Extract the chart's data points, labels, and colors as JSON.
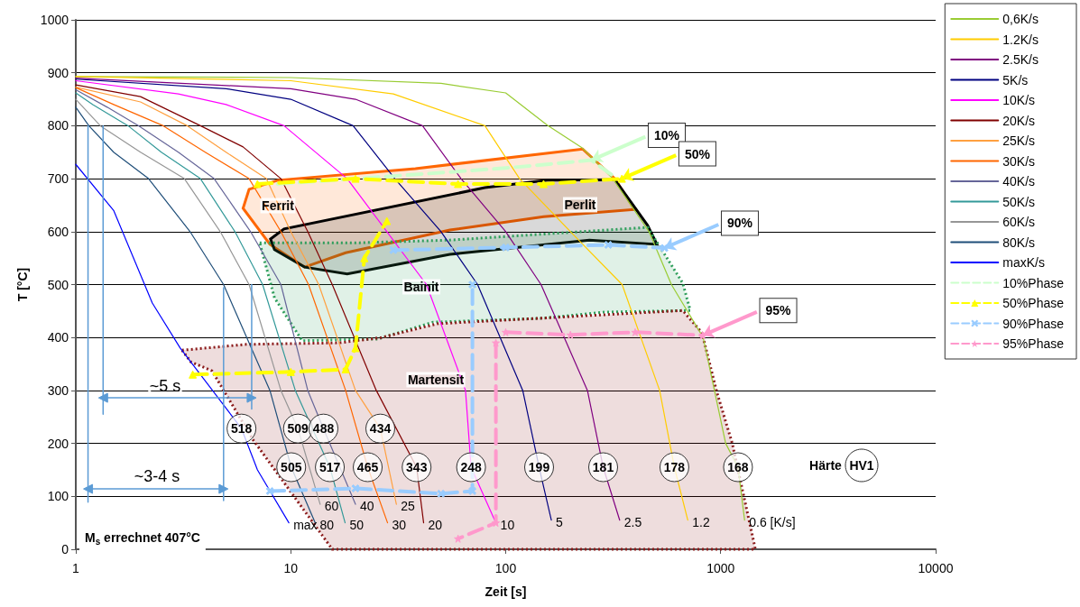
{
  "chart_data": {
    "type": "line",
    "xlabel": "Zeit [s]",
    "ylabel": "T [°C]",
    "log": "x",
    "xlim": [
      1,
      10000
    ],
    "xticks": [
      1,
      10,
      100,
      1000,
      10000
    ],
    "ylim": [
      0,
      1000
    ],
    "yticks": [
      0,
      100,
      200,
      300,
      400,
      500,
      600,
      700,
      800,
      900,
      1000
    ],
    "grid": "y",
    "legend": "right",
    "series": [
      {
        "name": "0,6K/s",
        "color": "#99cc33",
        "x": [
          1,
          10,
          50,
          100,
          156,
          227,
          315,
          464,
          590,
          829,
          1055,
          1204,
          1292
        ],
        "values": [
          893,
          891,
          880,
          862,
          801,
          758,
          700,
          600,
          500,
          400,
          200,
          155,
          55
        ]
      },
      {
        "name": "1.2K/s",
        "color": "#ffcc00",
        "x": [
          1,
          10,
          30,
          80,
          116,
          200,
          348,
          520,
          609,
          703
        ],
        "values": [
          893,
          885,
          860,
          800,
          700,
          600,
          500,
          300,
          155,
          55
        ]
      },
      {
        "name": "2.5K/s",
        "color": "#800080",
        "x": [
          1,
          10,
          20,
          41,
          62,
          100,
          146,
          240,
          284,
          339
        ],
        "values": [
          890,
          870,
          850,
          800,
          700,
          600,
          500,
          300,
          155,
          55
        ]
      },
      {
        "name": "5K/s",
        "color": "#000080",
        "x": [
          1,
          5,
          10,
          19.5,
          30.5,
          50,
          74,
          120,
          143,
          163
        ],
        "values": [
          888,
          870,
          850,
          800,
          700,
          600,
          500,
          300,
          155,
          55
        ]
      },
      {
        "name": "10K/s",
        "color": "#ff00ff",
        "x": [
          1,
          3,
          5,
          9.3,
          18.3,
          28,
          42.8,
          65,
          69,
          90
        ],
        "values": [
          885,
          860,
          840,
          800,
          700,
          600,
          500,
          300,
          155,
          50
        ]
      },
      {
        "name": "20K/s",
        "color": "#800000",
        "x": [
          1,
          2,
          3.8,
          6,
          9,
          12,
          15.6,
          25,
          38.5,
          41.5
        ],
        "values": [
          877,
          855,
          800,
          760,
          700,
          600,
          500,
          300,
          155,
          50
        ]
      },
      {
        "name": "25K/s",
        "color": "#ffa040",
        "x": [
          1,
          2,
          3.3,
          5,
          7.7,
          10,
          13.5,
          20,
          26.1,
          31
        ],
        "values": [
          873,
          845,
          800,
          750,
          700,
          600,
          500,
          300,
          228,
          85
        ]
      },
      {
        "name": "30K/s",
        "color": "#ff6600",
        "x": [
          1,
          1.5,
          2.55,
          4,
          6.4,
          9,
          12.1,
          18,
          22.8,
          28.2
        ],
        "values": [
          872,
          840,
          800,
          750,
          700,
          600,
          500,
          300,
          155,
          50
        ]
      },
      {
        "name": "40K/s",
        "color": "#666699",
        "x": [
          1,
          1.4,
          1.96,
          3,
          4.4,
          6.5,
          9,
          12,
          14.2,
          20
        ],
        "values": [
          868,
          835,
          800,
          750,
          700,
          600,
          500,
          300,
          228,
          85
        ]
      },
      {
        "name": "50K/s",
        "color": "#339999",
        "x": [
          1,
          1.2,
          1.75,
          2.5,
          3.8,
          5.5,
          7.4,
          10.5,
          15.2,
          17.9
        ],
        "values": [
          862,
          840,
          800,
          750,
          700,
          600,
          500,
          300,
          155,
          50
        ]
      },
      {
        "name": "60K/s",
        "color": "#969696",
        "x": [
          1,
          1.3,
          2,
          3.2,
          4.7,
          6.4,
          9,
          10.8,
          13.7
        ],
        "values": [
          850,
          800,
          750,
          700,
          600,
          500,
          300,
          228,
          85
        ]
      },
      {
        "name": "80K/s",
        "color": "#1f4e79",
        "x": [
          1,
          1.15,
          1.5,
          2.18,
          3.4,
          4.87,
          8,
          10.05,
          13
        ],
        "values": [
          835,
          800,
          750,
          700,
          600,
          500,
          300,
          155,
          50
        ]
      },
      {
        "name": "maxK/s",
        "color": "#0000ff",
        "x": [
          1,
          1.5,
          2.27,
          3.06,
          5.9,
          7,
          9.8
        ],
        "values": [
          727,
          640,
          465,
          380,
          228,
          150,
          50
        ]
      },
      {
        "name": "10%Phase",
        "color": "#ccffcc",
        "line_style": "dashed",
        "x": [
          8.7,
          30,
          100,
          250,
          330
        ],
        "values": [
          690,
          705,
          720,
          735,
          700
        ]
      },
      {
        "name": "50%Phase",
        "color": "#ffff00",
        "line_style": "dashed",
        "marker": "triangle",
        "x": [
          7,
          20,
          60,
          150,
          347
        ],
        "values": [
          690,
          700,
          690,
          690,
          700
        ]
      },
      {
        "color": "#ffff00",
        "line_style": "dashed",
        "marker": "triangle",
        "x": [
          3.5,
          10,
          18,
          20,
          22,
          28
        ],
        "values": [
          330,
          335,
          340,
          380,
          550,
          620
        ]
      },
      {
        "name": "90%Phase",
        "color": "#99ccff",
        "line_style": "dashed",
        "marker": "cross",
        "x": [
          30,
          100,
          300,
          547
        ],
        "values": [
          565,
          570,
          575,
          569
        ]
      },
      {
        "color": "#99ccff",
        "line_style": "dashed",
        "marker": "cross",
        "x": [
          8,
          20,
          50,
          70,
          70
        ],
        "values": [
          110,
          115,
          105,
          110,
          500
        ]
      },
      {
        "name": "95%Phase",
        "color": "#ff99cc",
        "line_style": "dashed",
        "marker": "star",
        "x": [
          100,
          200,
          400,
          825
        ],
        "values": [
          410,
          405,
          410,
          404
        ]
      },
      {
        "color": "#ff99cc",
        "line_style": "dashed",
        "marker": "star",
        "x": [
          90,
          90,
          60
        ],
        "values": [
          390,
          50,
          20
        ]
      },
      {
        "type": "area",
        "color": "#ff6600",
        "x": [
          8,
          6,
          6.4,
          8.7,
          38,
          228,
          322,
          398,
          150,
          55,
          18,
          11.6,
          8
        ],
        "values": [
          576,
          644,
          680,
          697,
          719,
          756,
          700,
          642,
          628,
          603,
          560,
          533,
          576
        ]
      },
      {
        "type": "area",
        "color": "#000000",
        "x": [
          8.05,
          9.3,
          80,
          156,
          322,
          457,
          505,
          245,
          55,
          18.3,
          11.6,
          8.4,
          8.05
        ],
        "values": [
          586,
          605,
          683,
          697,
          698,
          612,
          576,
          584,
          557,
          520,
          533,
          566,
          586
        ]
      },
      {
        "type": "area",
        "color": "#2e9e5b",
        "line_style": "dotted",
        "x": [
          7.17,
          21,
          55,
          457,
          666,
          722,
          289,
          146,
          46,
          25.4,
          11.3,
          8.4,
          7.17
        ],
        "values": [
          579,
          579,
          584,
          608,
          503,
          451,
          448,
          436,
          429,
          397,
          394,
          475,
          579
        ]
      },
      {
        "type": "area",
        "color": "#8b1a1a",
        "line_style": "dotted",
        "x": [
          3.12,
          6.2,
          16.9,
          26.4,
          48,
          666,
          818,
          958,
          1134,
          1450,
          15.6,
          6.7,
          4.3,
          3.43,
          3.12
        ],
        "values": [
          376,
          387,
          390,
          400,
          426,
          451,
          409,
          298,
          199,
          0,
          0,
          206,
          337,
          354,
          376
        ]
      },
      {
        "color": "#5b9bd5",
        "x": [
          1.14,
          1.14
        ],
        "values": [
          800,
          89
        ]
      },
      {
        "color": "#5b9bd5",
        "x": [
          1.34,
          1.34
        ],
        "values": [
          800,
          255
        ]
      },
      {
        "color": "#5b9bd5",
        "x": [
          4.87,
          4.87
        ],
        "values": [
          494,
          92
        ]
      },
      {
        "color": "#5b9bd5",
        "x": [
          6.58,
          6.58
        ],
        "values": [
          500,
          265
        ]
      },
      {
        "color": "#5b9bd5",
        "marker": "triangle",
        "x": [
          1.34,
          6.58
        ],
        "values": [
          286,
          286
        ]
      },
      {
        "color": "#5b9bd5",
        "marker": "triangle",
        "x": [
          1.14,
          4.87
        ],
        "values": [
          114,
          114
        ]
      }
    ],
    "annotations": [
      "Ferrit",
      "Perlit",
      "Bainit",
      "Martensit",
      {
        "text": "10%",
        "x": 250,
        "y": 735
      },
      {
        "text": "50%",
        "x": 347,
        "y": 700
      },
      {
        "text": "90%",
        "x": 547,
        "y": 569
      },
      {
        "text": "95%",
        "x": 825,
        "y": 404
      },
      "~5 s",
      "~3-4 s",
      "Härte",
      "HV1",
      "M$_{s}$ errechnet 407°C",
      {
        "text": "518",
        "x": 5.9,
        "y": 228
      },
      {
        "text": "509",
        "x": 10.8,
        "y": 228
      },
      {
        "text": "488",
        "x": 14.2,
        "y": 228
      },
      {
        "text": "434",
        "x": 26.1,
        "y": 228
      },
      {
        "text": "505",
        "x": 10.05,
        "y": 155
      },
      {
        "text": "517",
        "x": 15.2,
        "y": 155
      },
      {
        "text": "465",
        "x": 22.8,
        "y": 155
      },
      {
        "text": "343",
        "x": 38.5,
        "y": 155
      },
      {
        "text": "248",
        "x": 69,
        "y": 155
      },
      {
        "text": "199",
        "x": 143,
        "y": 155
      },
      {
        "text": "181",
        "x": 284,
        "y": 155
      },
      {
        "text": "178",
        "x": 609,
        "y": 155
      },
      {
        "text": "168",
        "x": 1204,
        "y": 155
      },
      {
        "text": "max",
        "x": 9.8,
        "y": 50
      },
      {
        "text": "80",
        "x": 13,
        "y": 50
      },
      {
        "text": "60",
        "x": 13.7,
        "y": 85
      },
      {
        "text": "50",
        "x": 17.9,
        "y": 50
      },
      {
        "text": "40",
        "x": 20,
        "y": 85
      },
      {
        "text": "30",
        "x": 28.2,
        "y": 50
      },
      {
        "text": "25",
        "x": 31,
        "y": 85
      },
      {
        "text": "20",
        "x": 41.5,
        "y": 50
      },
      {
        "text": "10",
        "x": 90,
        "y": 50
      },
      {
        "text": "5",
        "x": 163,
        "y": 55
      },
      {
        "text": "2.5",
        "x": 339,
        "y": 55
      },
      {
        "text": "1.2",
        "x": 703,
        "y": 55
      },
      {
        "text": "0.6 [K/s]",
        "x": 1292,
        "y": 55
      }
    ]
  }
}
